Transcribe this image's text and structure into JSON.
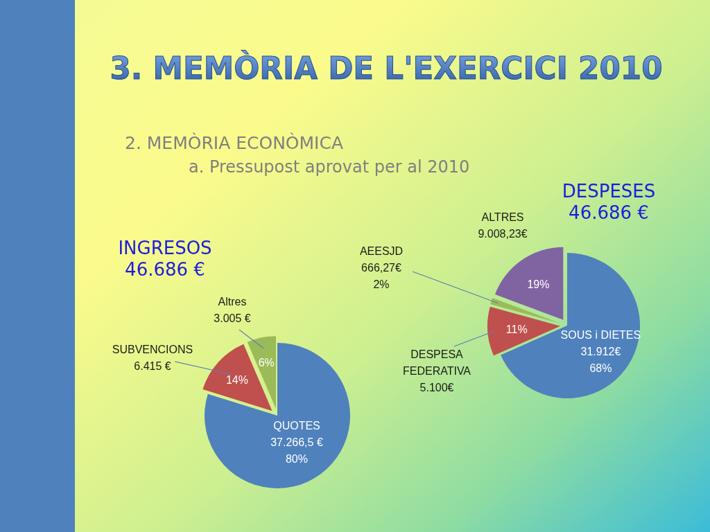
{
  "chart_data": [
    {
      "type": "other",
      "title": "3. MEMÒRIA DE L'EXERCICI 2010",
      "subtitle": "2. MEMÒRIA ECONÒMICA",
      "annotations": [
        "a. Pressupost aprovat per al 2010"
      ]
    },
    {
      "type": "pie",
      "title": "INGRESOS",
      "subtitle": "46.686 €",
      "categories": [
        "QUOTES",
        "SUBVENCIONS",
        "Altres"
      ],
      "values": [
        37266.5,
        6415,
        3005
      ],
      "colors": [
        "#4f81bd",
        "#c0504d",
        "#9bbb59"
      ],
      "value_labels": [
        "37.266,5 €",
        "6.415 €",
        "3.005 €"
      ],
      "annotations": [
        {
          "text": "80%",
          "x": "QUOTES"
        },
        {
          "text": "14%",
          "x": "SUBVENCIONS"
        },
        {
          "text": "6%",
          "x": "Altres"
        }
      ]
    },
    {
      "type": "pie",
      "title": "DESPESES",
      "subtitle": "46.686 €",
      "categories": [
        "SOUS i DIETES",
        "DESPESA FEDERATIVA",
        "AEESJD",
        "ALTRES"
      ],
      "values": [
        31912,
        5100,
        666.27,
        9008.23
      ],
      "colors": [
        "#4f81bd",
        "#c0504d",
        "#9bbb59",
        "#8064a2"
      ],
      "value_labels": [
        "31.912€",
        "5.100€",
        "666,27€",
        "9.008,23€"
      ],
      "annotations": [
        {
          "text": "68%",
          "x": "SOUS i DIETES"
        },
        {
          "text": "11%",
          "x": "DESPESA FEDERATIVA"
        },
        {
          "text": "2%",
          "x": "AEESJD"
        },
        {
          "text": "19%",
          "x": "ALTRES"
        }
      ]
    }
  ]
}
